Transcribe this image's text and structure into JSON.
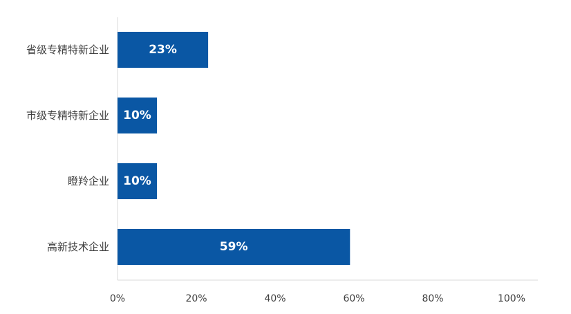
{
  "chart_data": {
    "type": "bar",
    "orientation": "horizontal",
    "categories": [
      "省级专精特新企业",
      "市级专精特新企业",
      "瞪羚企业",
      "高新技术企业"
    ],
    "values": [
      23,
      10,
      10,
      59
    ],
    "data_labels": [
      "23%",
      "10%",
      "10%",
      "59%"
    ],
    "x_ticks": [
      0,
      20,
      40,
      60,
      80,
      100
    ],
    "x_tick_labels": [
      "0%",
      "20%",
      "40%",
      "60%",
      "80%",
      "100%"
    ],
    "xlim": [
      0,
      100
    ],
    "title": "",
    "xlabel": "",
    "ylabel": "",
    "grid": false,
    "legend": "none",
    "colors": {
      "bar": "#0a57a4",
      "axis": "#d9d9d9",
      "text": "#404040",
      "data_label": "#ffffff"
    }
  }
}
